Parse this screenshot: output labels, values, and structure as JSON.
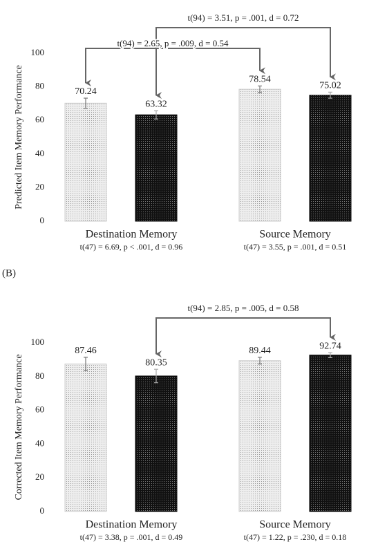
{
  "chart_data": [
    {
      "type": "bar",
      "y_label": "Predicted Item Memory Performance",
      "categories": [
        "Destination Memory",
        "Source Memory"
      ],
      "category_stats": [
        "t(47) = 6.69, p < .001, d = 0.96",
        "t(47) = 3.55, p = .001, d = 0.51"
      ],
      "series": [
        {
          "color": "#d9d9d9",
          "values": [
            70.24,
            78.54
          ],
          "errors": [
            3,
            2
          ]
        },
        {
          "color": "#1a1a1a",
          "values": [
            63.32,
            75.02
          ],
          "errors": [
            2.5,
            1.8
          ]
        }
      ],
      "comparisons": [
        "t(94) = 3.51, p = .001, d = 0.72",
        "t(94) = 2.65, p = .009, d = 0.54"
      ],
      "ylim": [
        0,
        100
      ],
      "yticks": [
        0,
        20,
        40,
        60,
        80,
        100
      ],
      "grid": false
    },
    {
      "type": "bar",
      "panel_label": "(B)",
      "y_label": "Corrected Item Memory Performance",
      "categories": [
        "Destination Memory",
        "Source Memory"
      ],
      "category_stats": [
        "t(47) = 3.38, p = .001, d = 0.49",
        "t(47) = 1.22, p = .230, d = 0.18"
      ],
      "series": [
        {
          "color": "#d9d9d9",
          "values": [
            87.46,
            89.44
          ],
          "errors": [
            4,
            2
          ]
        },
        {
          "color": "#1a1a1a",
          "values": [
            80.35,
            92.74
          ],
          "errors": [
            4,
            1.5
          ]
        }
      ],
      "comparisons": [
        "t(94) = 2.85, p = .005, d = 0.58"
      ],
      "ylim": [
        0,
        100
      ],
      "yticks": [
        0,
        20,
        40,
        60,
        80,
        100
      ],
      "grid": false
    }
  ]
}
